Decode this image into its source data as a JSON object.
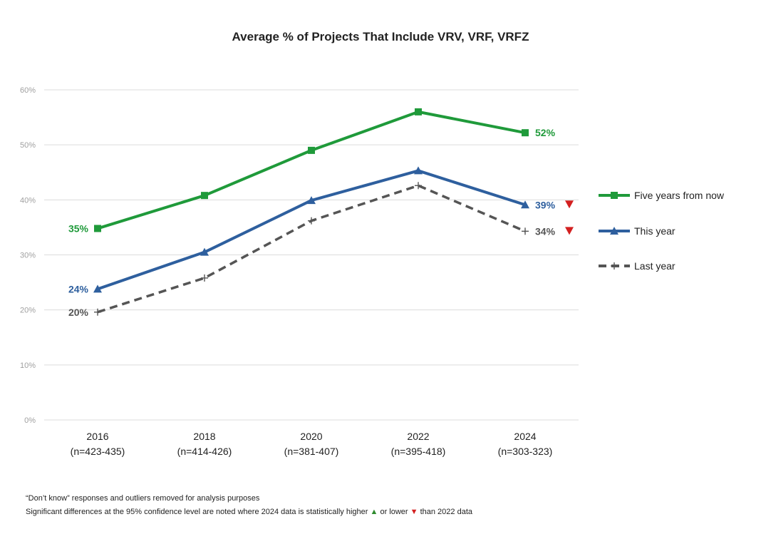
{
  "chart_data": {
    "type": "line",
    "title": "Average % of Projects That Include VRV, VRF, VRFZ",
    "x": [
      "2016",
      "2018",
      "2020",
      "2022",
      "2024"
    ],
    "x_sublabels": [
      "(n=423-435)",
      "(n=414-426)",
      "(n=381-407)",
      "(n=395-418)",
      "(n=303-323)"
    ],
    "ylim": [
      0,
      60
    ],
    "yticks": [
      0,
      10,
      20,
      30,
      40,
      50,
      60
    ],
    "ytick_labels": [
      "0%",
      "10%",
      "20%",
      "30%",
      "40%",
      "50%",
      "60%"
    ],
    "grid": true,
    "legend_position": "right",
    "series": [
      {
        "name": "Five years from now",
        "values": [
          34.8,
          40.8,
          49.0,
          56.0,
          52.2
        ],
        "color": "#1f9a3a",
        "marker": "square",
        "dash": "solid",
        "first_label": "35%",
        "last_label": "52%",
        "last_flag": ""
      },
      {
        "name": "This year",
        "values": [
          23.8,
          30.5,
          39.9,
          45.3,
          39.1
        ],
        "color": "#2e5f9e",
        "marker": "triangle",
        "dash": "solid",
        "first_label": "24%",
        "last_label": "39%",
        "last_flag": "down"
      },
      {
        "name": "Last year",
        "values": [
          19.6,
          25.8,
          36.2,
          42.6,
          34.3
        ],
        "color": "#555555",
        "marker": "plus",
        "dash": "dashed",
        "first_label": "20%",
        "last_label": "34%",
        "last_flag": "down"
      }
    ],
    "flag_color": "#d32020"
  },
  "footnotes": {
    "line1": "“Don’t know” responses and outliers removed for analysis purposes",
    "line2_before": "Significant differences at the 95% confidence level are noted where 2024 data is statistically higher",
    "up_symbol": "▲",
    "line2_middle": "or lower",
    "down_symbol": "▼",
    "line2_after": "than 2022 data"
  }
}
